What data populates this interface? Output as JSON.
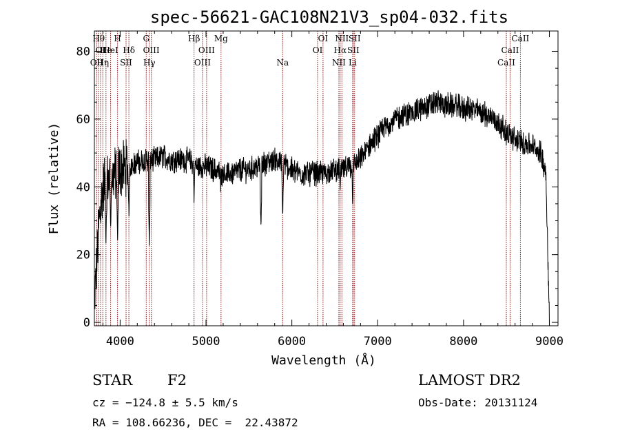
{
  "header": {
    "title": "spec-56621-GAC108N21V3_sp04-032.fits"
  },
  "info": {
    "class": "STAR",
    "subclass": "F2",
    "survey": "LAMOST DR2",
    "obs_date": "Obs-Date: 20131124",
    "cz": "cz = −124.8 ± 5.5 km/s",
    "coords": "RA = 108.66236, DEC =  22.43872"
  },
  "chart_data": {
    "type": "line",
    "title": "spec-56621-GAC108N21V3_sp04-032.fits",
    "xlabel": "Wavelength (Å)",
    "ylabel": "Flux (relative)",
    "xlim": [
      3700,
      9100
    ],
    "ylim": [
      -1,
      86
    ],
    "x_ticks": [
      4000,
      5000,
      6000,
      7000,
      8000,
      9000
    ],
    "y_ticks": [
      0,
      20,
      40,
      60,
      80
    ],
    "grid": false,
    "line_color": "#000000",
    "marker_color": "#8b1a1a",
    "spectrum_continuum": {
      "x": [
        3700,
        3750,
        3800,
        3850,
        3900,
        3950,
        4000,
        4100,
        4200,
        4300,
        4400,
        4500,
        4600,
        4700,
        4800,
        4900,
        5000,
        5100,
        5200,
        5300,
        5400,
        5500,
        5600,
        5700,
        5800,
        5900,
        6000,
        6100,
        6200,
        6300,
        6400,
        6500,
        6600,
        6700,
        6800,
        6900,
        7000,
        7100,
        7200,
        7300,
        7400,
        7500,
        7600,
        7700,
        7800,
        7900,
        8000,
        8100,
        8200,
        8300,
        8400,
        8500,
        8600,
        8700,
        8800,
        8900,
        8960,
        9000
      ],
      "y": [
        5,
        28,
        40,
        42,
        43,
        44,
        45,
        46,
        47,
        48,
        48,
        49,
        48,
        48,
        48,
        46,
        46,
        45,
        44,
        44,
        45,
        45,
        46,
        47,
        48,
        47,
        45,
        44,
        44,
        44,
        44,
        45,
        45,
        46,
        48,
        52,
        55,
        58,
        60,
        61,
        62,
        63,
        64,
        65,
        64,
        64,
        63,
        63,
        62,
        61,
        59,
        56,
        54,
        53,
        52,
        50,
        44,
        0
      ]
    },
    "spectrum_dips": [
      {
        "x": 3835,
        "y": 22
      },
      {
        "x": 3890,
        "y": 26
      },
      {
        "x": 3970,
        "y": 24
      },
      {
        "x": 4102,
        "y": 30
      },
      {
        "x": 4340,
        "y": 22
      },
      {
        "x": 4861,
        "y": 34
      },
      {
        "x": 5170,
        "y": 38
      },
      {
        "x": 5270,
        "y": 40
      },
      {
        "x": 5640,
        "y": 26
      },
      {
        "x": 5893,
        "y": 30
      },
      {
        "x": 6563,
        "y": 36
      },
      {
        "x": 6708,
        "y": 34
      }
    ],
    "spectral_lines": [
      {
        "wavelength": 3727,
        "label": "OII",
        "row": 2
      },
      {
        "wavelength": 3750,
        "label": "Hθ",
        "row": 0
      },
      {
        "wavelength": 3771,
        "label": "OI",
        "row": 1
      },
      {
        "wavelength": 3798,
        "label": "Hη",
        "row": 2
      },
      {
        "wavelength": 3835,
        "label": "He",
        "row": 1
      },
      {
        "wavelength": 3889,
        "label": "HeI",
        "row": 1
      },
      {
        "wavelength": 3970,
        "label": "H",
        "row": 0
      },
      {
        "wavelength": 4069,
        "label": "SII",
        "row": 2
      },
      {
        "wavelength": 4102,
        "label": "Hδ",
        "row": 1
      },
      {
        "wavelength": 4304,
        "label": "G",
        "row": 0
      },
      {
        "wavelength": 4340,
        "label": "Hγ",
        "row": 2
      },
      {
        "wavelength": 4363,
        "label": "OIII",
        "row": 1
      },
      {
        "wavelength": 4861,
        "label": "Hβ",
        "row": 0
      },
      {
        "wavelength": 4959,
        "label": "OIII",
        "row": 2
      },
      {
        "wavelength": 5007,
        "label": "OIII",
        "row": 1
      },
      {
        "wavelength": 5175,
        "label": "Mg",
        "row": 0
      },
      {
        "wavelength": 5893,
        "label": "Na",
        "row": 2
      },
      {
        "wavelength": 6300,
        "label": "OI",
        "row": 1
      },
      {
        "wavelength": 6363,
        "label": "OI",
        "row": 0
      },
      {
        "wavelength": 6548,
        "label": "NII",
        "row": 2
      },
      {
        "wavelength": 6563,
        "label": "Hα",
        "row": 1
      },
      {
        "wavelength": 6583,
        "label": "NII",
        "row": 0
      },
      {
        "wavelength": 6708,
        "label": "Li",
        "row": 2
      },
      {
        "wavelength": 6716,
        "label": "SII",
        "row": 1
      },
      {
        "wavelength": 6731,
        "label": "SII",
        "row": 0
      },
      {
        "wavelength": 8498,
        "label": "CaII",
        "row": 2
      },
      {
        "wavelength": 8542,
        "label": "CaII",
        "row": 1
      },
      {
        "wavelength": 8662,
        "label": "CaII",
        "row": 0
      }
    ]
  }
}
